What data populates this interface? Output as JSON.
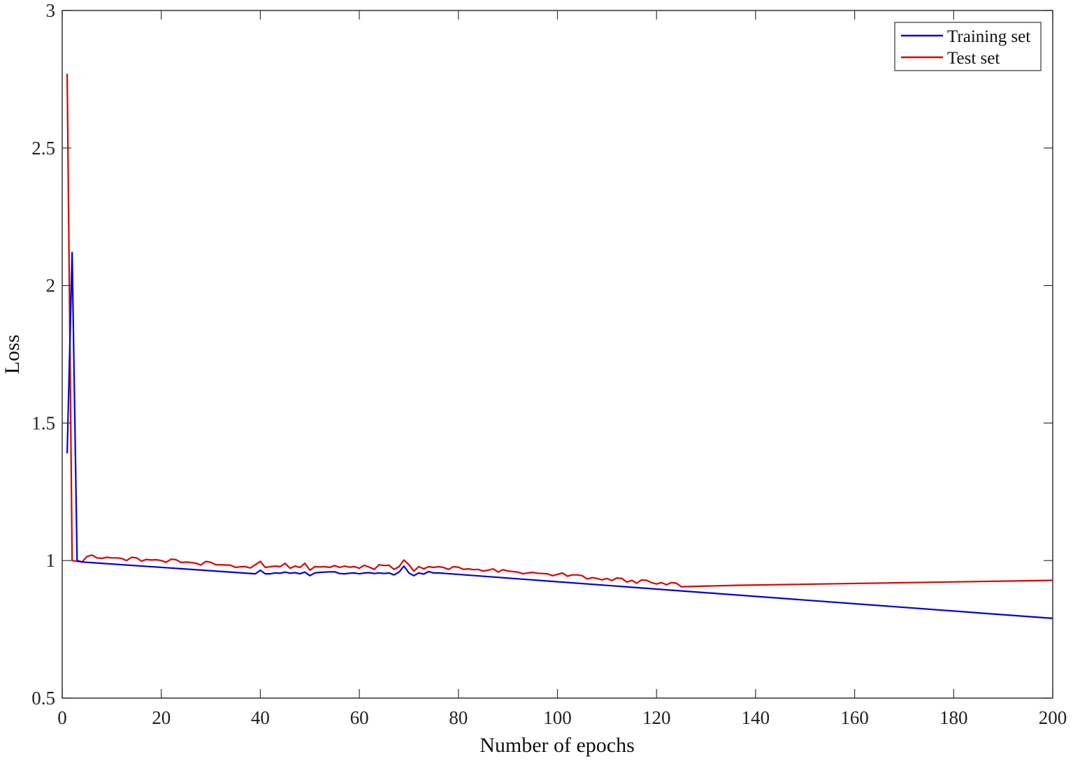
{
  "chart_data": {
    "type": "line",
    "title": "",
    "xlabel": "Number of epochs",
    "ylabel": "Loss",
    "xlim": [
      0,
      200
    ],
    "ylim": [
      0.5,
      3
    ],
    "xticks": [
      0,
      20,
      40,
      60,
      80,
      100,
      120,
      140,
      160,
      180,
      200
    ],
    "yticks": [
      0.5,
      1,
      1.5,
      2,
      2.5,
      3
    ],
    "xtick_labels": [
      "0",
      "20",
      "40",
      "60",
      "80",
      "100",
      "120",
      "140",
      "160",
      "180",
      "200"
    ],
    "ytick_labels": [
      "0.5",
      "1",
      "1.5",
      "2",
      "2.5",
      "3"
    ],
    "grid": false,
    "legend_position": "top-right",
    "series": [
      {
        "name": "Training set",
        "color": "#0000dd",
        "points": [
          [
            1,
            1.39
          ],
          [
            2,
            2.12
          ],
          [
            3,
            1.0
          ],
          [
            4,
            0.995
          ],
          [
            39,
            0.952
          ],
          [
            40,
            0.965
          ],
          [
            41,
            0.952
          ],
          [
            42,
            0.952
          ],
          [
            43,
            0.955
          ],
          [
            44,
            0.954
          ],
          [
            45,
            0.958
          ],
          [
            46,
            0.954
          ],
          [
            47,
            0.956
          ],
          [
            48,
            0.952
          ],
          [
            49,
            0.958
          ],
          [
            50,
            0.945
          ],
          [
            51,
            0.955
          ],
          [
            52,
            0.957
          ],
          [
            53,
            0.958
          ],
          [
            54,
            0.959
          ],
          [
            55,
            0.959
          ],
          [
            56,
            0.953
          ],
          [
            57,
            0.952
          ],
          [
            58,
            0.954
          ],
          [
            59,
            0.955
          ],
          [
            60,
            0.952
          ],
          [
            61,
            0.955
          ],
          [
            62,
            0.956
          ],
          [
            63,
            0.953
          ],
          [
            64,
            0.955
          ],
          [
            65,
            0.953
          ],
          [
            66,
            0.955
          ],
          [
            67,
            0.948
          ],
          [
            68,
            0.958
          ],
          [
            69,
            0.98
          ],
          [
            70,
            0.955
          ],
          [
            71,
            0.945
          ],
          [
            72,
            0.955
          ],
          [
            73,
            0.951
          ],
          [
            74,
            0.96
          ],
          [
            75,
            0.955
          ],
          [
            76,
            0.955
          ],
          [
            200,
            0.79
          ]
        ]
      },
      {
        "name": "Test set",
        "color": "#dd0000",
        "points": [
          [
            1,
            2.77
          ],
          [
            2,
            1.0
          ],
          [
            4,
            0.995
          ],
          [
            5,
            1.015
          ],
          [
            6,
            1.02
          ],
          [
            7,
            1.01
          ],
          [
            8,
            1.008
          ],
          [
            9,
            1.012
          ],
          [
            10,
            1.01
          ],
          [
            11,
            1.01
          ],
          [
            12,
            1.008
          ],
          [
            13,
            1.0
          ],
          [
            14,
            1.012
          ],
          [
            15,
            1.01
          ],
          [
            16,
            0.998
          ],
          [
            17,
            1.004
          ],
          [
            18,
            1.002
          ],
          [
            19,
            1.003
          ],
          [
            20,
            1.0
          ],
          [
            21,
            0.994
          ],
          [
            22,
            1.005
          ],
          [
            23,
            1.003
          ],
          [
            24,
            0.993
          ],
          [
            25,
            0.995
          ],
          [
            26,
            0.993
          ],
          [
            27,
            0.99
          ],
          [
            28,
            0.984
          ],
          [
            29,
            0.997
          ],
          [
            30,
            0.994
          ],
          [
            31,
            0.985
          ],
          [
            32,
            0.985
          ],
          [
            33,
            0.984
          ],
          [
            34,
            0.983
          ],
          [
            35,
            0.975
          ],
          [
            36,
            0.978
          ],
          [
            37,
            0.978
          ],
          [
            38,
            0.973
          ],
          [
            39,
            0.985
          ],
          [
            40,
            0.997
          ],
          [
            41,
            0.975
          ],
          [
            42,
            0.978
          ],
          [
            43,
            0.98
          ],
          [
            44,
            0.978
          ],
          [
            45,
            0.99
          ],
          [
            46,
            0.972
          ],
          [
            47,
            0.98
          ],
          [
            48,
            0.975
          ],
          [
            49,
            0.99
          ],
          [
            50,
            0.965
          ],
          [
            51,
            0.978
          ],
          [
            52,
            0.977
          ],
          [
            53,
            0.978
          ],
          [
            54,
            0.975
          ],
          [
            55,
            0.982
          ],
          [
            56,
            0.975
          ],
          [
            57,
            0.98
          ],
          [
            58,
            0.976
          ],
          [
            59,
            0.978
          ],
          [
            60,
            0.972
          ],
          [
            61,
            0.983
          ],
          [
            62,
            0.976
          ],
          [
            63,
            0.968
          ],
          [
            64,
            0.985
          ],
          [
            65,
            0.982
          ],
          [
            66,
            0.983
          ],
          [
            67,
            0.968
          ],
          [
            68,
            0.978
          ],
          [
            69,
            1.002
          ],
          [
            70,
            0.985
          ],
          [
            71,
            0.962
          ],
          [
            72,
            0.978
          ],
          [
            73,
            0.97
          ],
          [
            74,
            0.978
          ],
          [
            75,
            0.975
          ],
          [
            76,
            0.978
          ],
          [
            77,
            0.975
          ],
          [
            78,
            0.968
          ],
          [
            79,
            0.978
          ],
          [
            80,
            0.976
          ],
          [
            81,
            0.968
          ],
          [
            82,
            0.97
          ],
          [
            83,
            0.967
          ],
          [
            84,
            0.968
          ],
          [
            85,
            0.962
          ],
          [
            86,
            0.965
          ],
          [
            87,
            0.97
          ],
          [
            88,
            0.958
          ],
          [
            89,
            0.967
          ],
          [
            90,
            0.962
          ],
          [
            91,
            0.96
          ],
          [
            92,
            0.958
          ],
          [
            93,
            0.952
          ],
          [
            94,
            0.955
          ],
          [
            95,
            0.957
          ],
          [
            96,
            0.954
          ],
          [
            97,
            0.953
          ],
          [
            98,
            0.952
          ],
          [
            99,
            0.945
          ],
          [
            100,
            0.95
          ],
          [
            101,
            0.955
          ],
          [
            102,
            0.943
          ],
          [
            103,
            0.948
          ],
          [
            104,
            0.948
          ],
          [
            105,
            0.945
          ],
          [
            106,
            0.933
          ],
          [
            107,
            0.938
          ],
          [
            108,
            0.935
          ],
          [
            109,
            0.93
          ],
          [
            110,
            0.935
          ],
          [
            111,
            0.927
          ],
          [
            112,
            0.937
          ],
          [
            113,
            0.935
          ],
          [
            114,
            0.922
          ],
          [
            115,
            0.928
          ],
          [
            116,
            0.918
          ],
          [
            117,
            0.93
          ],
          [
            118,
            0.928
          ],
          [
            119,
            0.92
          ],
          [
            120,
            0.915
          ],
          [
            121,
            0.92
          ],
          [
            122,
            0.912
          ],
          [
            123,
            0.92
          ],
          [
            124,
            0.918
          ],
          [
            125,
            0.905
          ],
          [
            136,
            0.91
          ],
          [
            200,
            0.928
          ]
        ]
      }
    ]
  }
}
